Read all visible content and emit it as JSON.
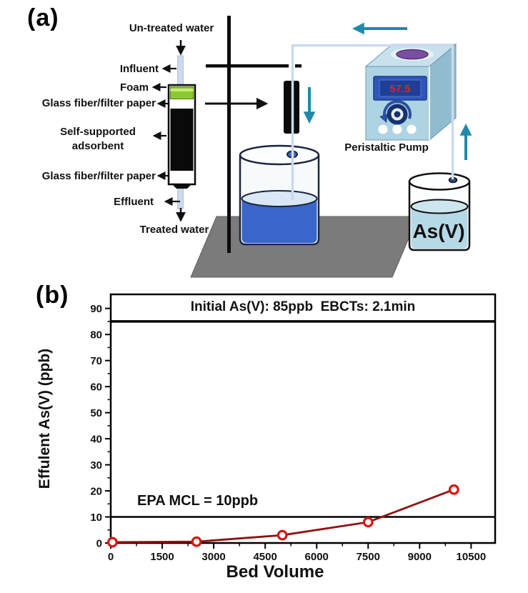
{
  "figure": {
    "panel_a_label": "(a)",
    "panel_b_label": "(b)"
  },
  "diagram": {
    "labels": {
      "untreated_water": "Un-treated water",
      "influent": "Influent",
      "foam": "Foam",
      "glass_fiber_top": "Glass fiber/filter paper",
      "adsorbent_line1": "Self-supported",
      "adsorbent_line2": "adsorbent",
      "glass_fiber_bottom": "Glass fiber/filter paper",
      "effluent": "Effluent",
      "treated_water": "Treated water",
      "pump": "Peristaltic Pump",
      "asv_beaker": "As(V)"
    },
    "pump_display_value": "57.5"
  },
  "chart_data": {
    "type": "line",
    "title": "Initial As(V): 85ppb  EBCTs: 2.1min",
    "xlabel": "Bed Volume",
    "ylabel": "Effulent As(V) (ppb)",
    "x": [
      50,
      2500,
      5000,
      7500,
      10000
    ],
    "values": [
      0.3,
      0.5,
      3,
      8,
      20.5
    ],
    "x_ticks": [
      0,
      1500,
      3000,
      4500,
      6000,
      7500,
      9000,
      10500
    ],
    "y_ticks": [
      0,
      10,
      20,
      30,
      40,
      50,
      60,
      70,
      80,
      90
    ],
    "xlim": [
      0,
      11200
    ],
    "ylim": [
      0,
      95.4
    ],
    "reference_lines": [
      {
        "label": "EPA MCL = 10ppb",
        "y": 10
      },
      {
        "label": "Initial As(V) level",
        "y": 85
      }
    ],
    "epa_label": "EPA MCL = 10ppb",
    "grid": false,
    "legend": "none",
    "series_color": "#8f1212",
    "marker_color": "#d81414",
    "marker_style": "open-circle"
  },
  "colors": {
    "pump_body": "#aed3e3",
    "pump_side": "#8fbccf",
    "pump_top": "#c8e1ec",
    "display_frame": "#2e56bb",
    "display_panel": "#1d3f96",
    "display_digits": "#e02424",
    "knob_navy": "#16336e",
    "purple_port": "#7b4fa0",
    "water_dark_blue": "#3a66cb",
    "water_light_blue": "#b5d9e6",
    "tube_blue": "#ccd9ee",
    "flow_arrow_teal": "#1f8aab",
    "foam_green": "#8cc832",
    "base_gray": "#7b7b7b",
    "curve_dark_red": "#8f1212"
  }
}
